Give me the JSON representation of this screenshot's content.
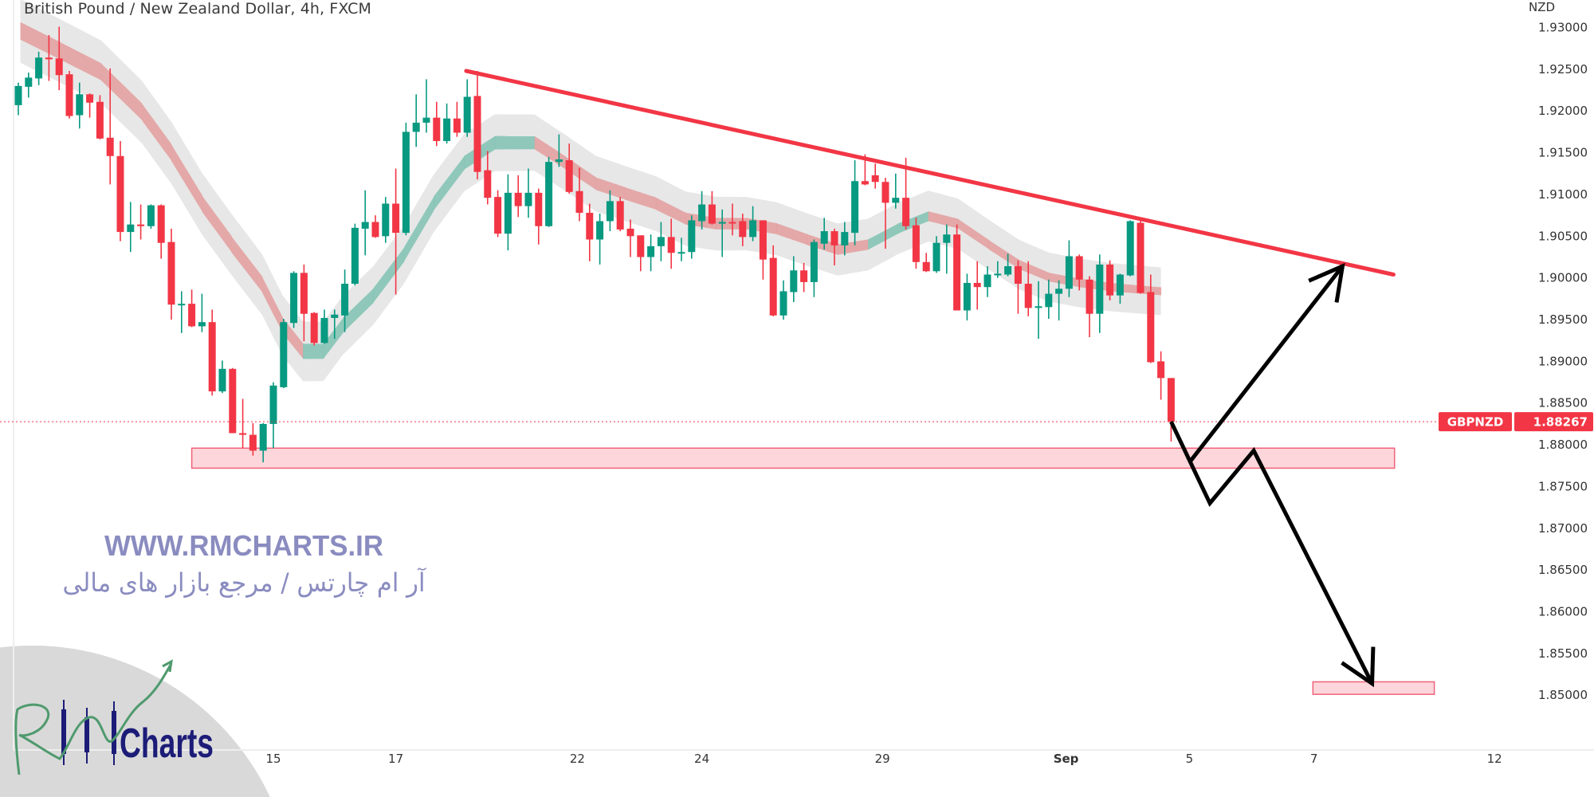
{
  "header": {
    "title": "British Pound / New Zealand Dollar, 4h, FXCM"
  },
  "price_scale": {
    "currency": "NZD",
    "ticks": [
      "1.93000",
      "1.92500",
      "1.92000",
      "1.91500",
      "1.91000",
      "1.90500",
      "1.90000",
      "1.89500",
      "1.89000",
      "1.88500",
      "1.88000",
      "1.87500",
      "1.87000",
      "1.86500",
      "1.86000",
      "1.85500",
      "1.85000"
    ]
  },
  "last_price": {
    "symbol": "GBPNZD",
    "value": "1.88267"
  },
  "watermark": {
    "url": "WWW.RMCHARTS.IR",
    "tagline": "آر ام چارتس / مرجع بازار های مالی"
  },
  "logo": {
    "monogram": "RM",
    "text": "Charts"
  },
  "colors": {
    "up": "#089981",
    "down": "#f23645",
    "trendline": "#f23645",
    "zone_fill": "#fcd6da",
    "zone_border": "#f0627a",
    "ribbon_down": "#e39c9c",
    "ribbon_up": "#7fc2b1",
    "band": "#e4e4e4",
    "projection": "#000000",
    "watermark": "#8a8cc0",
    "logo_text": "#1c1c78",
    "logo_script": "#4f9a6e",
    "logo_circle": "#d9d9d9"
  },
  "chart_data": {
    "type": "candlestick",
    "title": "British Pound / New Zealand Dollar, 4h, FXCM",
    "ylabel": "NZD",
    "ylim": [
      1.85,
      1.93
    ],
    "grid": false,
    "x_ticks": [
      {
        "label": "15",
        "bar": 25
      },
      {
        "label": "17",
        "bar": 37
      },
      {
        "label": "22",
        "bar": 54.8
      },
      {
        "label": "24",
        "bar": 67
      },
      {
        "label": "29",
        "bar": 84.7
      },
      {
        "label": "Sep",
        "bar": 102.7,
        "bold": true
      },
      {
        "label": "5",
        "bar": 114.8
      },
      {
        "label": "7",
        "bar": 127
      },
      {
        "label": "12",
        "bar": 144.7
      }
    ],
    "candles_ohlc": [
      [
        1.9206,
        1.9233,
        1.9194,
        1.9229
      ],
      [
        1.9228,
        1.9245,
        1.9215,
        1.9239
      ],
      [
        1.9238,
        1.927,
        1.923,
        1.9263
      ],
      [
        1.9263,
        1.929,
        1.9235,
        1.9261
      ],
      [
        1.9262,
        1.93,
        1.9224,
        1.9242
      ],
      [
        1.9243,
        1.9247,
        1.919,
        1.9193
      ],
      [
        1.9194,
        1.9233,
        1.9178,
        1.9219
      ],
      [
        1.9219,
        1.922,
        1.9191,
        1.9209
      ],
      [
        1.921,
        1.9218,
        1.9165,
        1.9166
      ],
      [
        1.9167,
        1.925,
        1.9111,
        1.9145
      ],
      [
        1.9145,
        1.9163,
        1.9043,
        1.9054
      ],
      [
        1.9054,
        1.909,
        1.903,
        1.9063
      ],
      [
        1.9063,
        1.9087,
        1.9045,
        1.9061
      ],
      [
        1.9061,
        1.9087,
        1.9058,
        1.9086
      ],
      [
        1.9086,
        1.9087,
        1.9022,
        1.9041
      ],
      [
        1.9042,
        1.9058,
        1.8949,
        1.8967
      ],
      [
        1.8967,
        1.8983,
        1.8933,
        1.8968
      ],
      [
        1.8968,
        1.8985,
        1.894,
        1.8941
      ],
      [
        1.8941,
        1.898,
        1.8934,
        1.8946
      ],
      [
        1.8946,
        1.8961,
        1.8858,
        1.8863
      ],
      [
        1.8863,
        1.89,
        1.8861,
        1.889
      ],
      [
        1.889,
        1.8891,
        1.8813,
        1.8813
      ],
      [
        1.8813,
        1.8854,
        1.8795,
        1.8811
      ],
      [
        1.8811,
        1.8825,
        1.8786,
        1.8792
      ],
      [
        1.8792,
        1.8825,
        1.8778,
        1.8824
      ],
      [
        1.8824,
        1.8874,
        1.8795,
        1.887
      ],
      [
        1.8868,
        1.895,
        1.8867,
        1.8946
      ],
      [
        1.8945,
        1.9007,
        1.8939,
        1.9005
      ],
      [
        1.9005,
        1.9015,
        1.8923,
        1.8956
      ],
      [
        1.8957,
        1.8958,
        1.8918,
        1.8921
      ],
      [
        1.8921,
        1.8961,
        1.892,
        1.8951
      ],
      [
        1.8951,
        1.8961,
        1.8926,
        1.8955
      ],
      [
        1.8954,
        1.9009,
        1.8934,
        1.8992
      ],
      [
        1.8992,
        1.9064,
        1.899,
        1.9059
      ],
      [
        1.9058,
        1.9104,
        1.9026,
        1.9066
      ],
      [
        1.9066,
        1.9074,
        1.9047,
        1.9048
      ],
      [
        1.9049,
        1.9096,
        1.9041,
        1.9088
      ],
      [
        1.9088,
        1.913,
        1.8979,
        1.9053
      ],
      [
        1.9053,
        1.9185,
        1.905,
        1.9174
      ],
      [
        1.9174,
        1.9219,
        1.9156,
        1.9185
      ],
      [
        1.9185,
        1.9237,
        1.9173,
        1.9191
      ],
      [
        1.9191,
        1.921,
        1.9157,
        1.9163
      ],
      [
        1.9163,
        1.9208,
        1.916,
        1.919
      ],
      [
        1.919,
        1.921,
        1.9168,
        1.9173
      ],
      [
        1.9173,
        1.9237,
        1.9168,
        1.9216
      ],
      [
        1.9217,
        1.9247,
        1.9117,
        1.9126
      ],
      [
        1.9128,
        1.9151,
        1.9087,
        1.9095
      ],
      [
        1.9096,
        1.9104,
        1.9048,
        1.9052
      ],
      [
        1.9052,
        1.9123,
        1.9032,
        1.9101
      ],
      [
        1.9101,
        1.9122,
        1.9072,
        1.9085
      ],
      [
        1.9085,
        1.913,
        1.9071,
        1.9101
      ],
      [
        1.9101,
        1.9106,
        1.9039,
        1.9061
      ],
      [
        1.9061,
        1.9144,
        1.906,
        1.9138
      ],
      [
        1.9138,
        1.9171,
        1.9132,
        1.9141
      ],
      [
        1.914,
        1.916,
        1.91,
        1.9102
      ],
      [
        1.9103,
        1.9131,
        1.9067,
        1.9077
      ],
      [
        1.9077,
        1.9088,
        1.9019,
        1.9045
      ],
      [
        1.9045,
        1.9076,
        1.9015,
        1.9067
      ],
      [
        1.9067,
        1.9104,
        1.9055,
        1.9091
      ],
      [
        1.9091,
        1.9096,
        1.9055,
        1.9057
      ],
      [
        1.9058,
        1.9069,
        1.9024,
        1.9049
      ],
      [
        1.905,
        1.905,
        1.9007,
        1.9024
      ],
      [
        1.9024,
        1.9051,
        1.9007,
        1.9037
      ],
      [
        1.9037,
        1.9066,
        1.9019,
        1.9048
      ],
      [
        1.9048,
        1.907,
        1.901,
        1.9029
      ],
      [
        1.9029,
        1.9047,
        1.9019,
        1.903
      ],
      [
        1.903,
        1.9074,
        1.9022,
        1.9068
      ],
      [
        1.9067,
        1.9103,
        1.9057,
        1.9087
      ],
      [
        1.9087,
        1.9103,
        1.9063,
        1.9064
      ],
      [
        1.9064,
        1.9081,
        1.9024,
        1.9066
      ],
      [
        1.9066,
        1.9088,
        1.905,
        1.9065
      ],
      [
        1.9067,
        1.9076,
        1.9037,
        1.9048
      ],
      [
        1.9048,
        1.9085,
        1.9043,
        1.9068
      ],
      [
        1.9068,
        1.9068,
        1.8997,
        1.9021
      ],
      [
        1.9023,
        1.9038,
        1.8953,
        1.8954
      ],
      [
        1.8954,
        1.8996,
        1.8949,
        1.8983
      ],
      [
        1.8982,
        1.9025,
        1.897,
        1.9008
      ],
      [
        1.9008,
        1.9017,
        1.8982,
        1.8994
      ],
      [
        1.8994,
        1.9045,
        1.8976,
        1.9042
      ],
      [
        1.904,
        1.9071,
        1.9033,
        1.9055
      ],
      [
        1.9055,
        1.9058,
        1.9014,
        1.9038
      ],
      [
        1.9038,
        1.9066,
        1.9026,
        1.9054
      ],
      [
        1.9053,
        1.914,
        1.9038,
        1.9115
      ],
      [
        1.9115,
        1.9147,
        1.911,
        1.9111
      ],
      [
        1.9122,
        1.9136,
        1.9106,
        1.9114
      ],
      [
        1.9114,
        1.9119,
        1.9034,
        1.9089
      ],
      [
        1.9089,
        1.9124,
        1.9082,
        1.9095
      ],
      [
        1.9095,
        1.9143,
        1.9057,
        1.9061
      ],
      [
        1.9062,
        1.9071,
        1.901,
        1.9018
      ],
      [
        1.9018,
        1.9029,
        1.9006,
        1.9007
      ],
      [
        1.9007,
        1.9049,
        1.9005,
        1.9041
      ],
      [
        1.9041,
        1.9063,
        1.9004,
        1.9051
      ],
      [
        1.9051,
        1.9063,
        1.896,
        1.896
      ],
      [
        1.896,
        1.9004,
        1.8948,
        1.8993
      ],
      [
        1.8993,
        1.9019,
        1.8961,
        1.8988
      ],
      [
        1.8988,
        1.9013,
        1.8976,
        1.9003
      ],
      [
        1.9003,
        1.9019,
        1.8999,
        1.9004
      ],
      [
        1.9003,
        1.9028,
        1.9001,
        1.9013
      ],
      [
        1.9013,
        1.902,
        1.8956,
        1.8992
      ],
      [
        1.8992,
        1.9019,
        1.8953,
        1.8963
      ],
      [
        1.8964,
        1.8995,
        1.8926,
        1.8965
      ],
      [
        1.8964,
        1.8997,
        1.895,
        1.898
      ],
      [
        1.898,
        1.8996,
        1.8948,
        1.8986
      ],
      [
        1.8986,
        1.9044,
        1.8976,
        1.9025
      ],
      [
        1.9025,
        1.9027,
        1.8984,
        1.8997
      ],
      [
        1.8997,
        1.9001,
        1.8928,
        1.8956
      ],
      [
        1.8956,
        1.9027,
        1.8933,
        1.9015
      ],
      [
        1.9015,
        1.902,
        1.8972,
        1.8978
      ],
      [
        1.8978,
        1.9004,
        1.8968,
        1.9003
      ],
      [
        1.9002,
        1.9068,
        1.9001,
        1.9067
      ],
      [
        1.9065,
        1.9068,
        1.898,
        1.8981
      ],
      [
        1.8982,
        1.9003,
        1.8897,
        1.8898
      ],
      [
        1.8899,
        1.8911,
        1.8853,
        1.8879
      ],
      [
        1.8879,
        1.8879,
        1.8803,
        1.88267
      ]
    ],
    "ma_ribbon": [
      [
        0.2,
        1.9295,
        "down"
      ],
      [
        4.1,
        1.9271,
        "down"
      ],
      [
        8.1,
        1.9246,
        "down"
      ],
      [
        12.1,
        1.9198,
        "down"
      ],
      [
        15,
        1.9149,
        "down"
      ],
      [
        18,
        1.9088,
        "down"
      ],
      [
        20.9,
        1.9039,
        "down"
      ],
      [
        23.9,
        1.8991,
        "down"
      ],
      [
        25.9,
        1.8942,
        "down"
      ],
      [
        27.9,
        1.8911,
        "up"
      ],
      [
        29.9,
        1.8911,
        "up"
      ],
      [
        31.8,
        1.8942,
        "up"
      ],
      [
        34.8,
        1.8978,
        "up"
      ],
      [
        37.8,
        1.9027,
        "up"
      ],
      [
        40.7,
        1.9088,
        "up"
      ],
      [
        43.7,
        1.9137,
        "up"
      ],
      [
        46.7,
        1.9161,
        "up"
      ],
      [
        50.6,
        1.9161,
        "down"
      ],
      [
        53.6,
        1.9137,
        "down"
      ],
      [
        56.6,
        1.9112,
        "down"
      ],
      [
        59.5,
        1.91,
        "down"
      ],
      [
        62.5,
        1.9088,
        "down"
      ],
      [
        65.4,
        1.907,
        "down"
      ],
      [
        68.4,
        1.9064,
        "down"
      ],
      [
        71.4,
        1.9064,
        "down"
      ],
      [
        74.3,
        1.9058,
        "down"
      ],
      [
        77.3,
        1.9045,
        "down"
      ],
      [
        80.3,
        1.9033,
        "down"
      ],
      [
        83.3,
        1.9039,
        "up"
      ],
      [
        86.2,
        1.9058,
        "up"
      ],
      [
        89.2,
        1.9073,
        "down"
      ],
      [
        92.1,
        1.9064,
        "down"
      ],
      [
        95.1,
        1.9039,
        "down"
      ],
      [
        98.1,
        1.9015,
        "down"
      ],
      [
        101,
        1.9,
        "down"
      ],
      [
        104,
        1.8993,
        "down"
      ],
      [
        107,
        1.8988,
        "down"
      ],
      [
        112,
        1.8983,
        "down"
      ]
    ],
    "annotations": {
      "trendline": [
        [
          43.9,
          1.9247
        ],
        [
          134.8,
          1.9003
        ]
      ],
      "support_zone": {
        "bars": [
          17,
          134.9
        ],
        "prices": [
          1.8771,
          1.8795
        ]
      },
      "target_zone": {
        "bars": [
          126.9,
          138.8
        ],
        "prices": [
          1.85,
          1.8515
        ]
      },
      "projection_down": [
        [
          113,
          1.88267
        ],
        [
          116.8,
          1.8729
        ],
        [
          121.1,
          1.8792
        ],
        [
          132.7,
          1.8513
        ]
      ],
      "projection_up": [
        [
          114.8,
          1.8778
        ],
        [
          129.8,
          1.9013
        ]
      ],
      "last_price_line": 1.88267
    }
  }
}
